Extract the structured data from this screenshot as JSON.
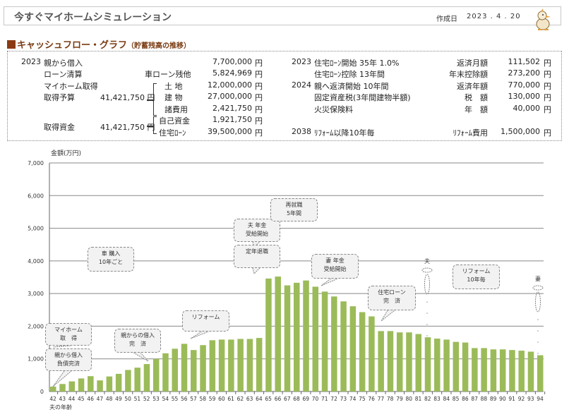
{
  "header": {
    "title": "今すぐマイホームシミュレーション",
    "date_label": "作成日",
    "date_value": "2023 . 4 . 20"
  },
  "section": {
    "title": "キャッシュフロー・グラフ",
    "subtitle": "（貯蓄残高の推移）"
  },
  "info_left": {
    "year": "2023",
    "rows": [
      {
        "label": "親から借入",
        "sub": "",
        "amount": "7,700,000",
        "unit": "円"
      },
      {
        "label": "ローン清算",
        "sub": "車ローン残他",
        "amount": "5,824,969",
        "unit": "円"
      },
      {
        "label": "マイホーム取得",
        "sub": "土 地",
        "amount": "12,000,000",
        "unit": "円"
      },
      {
        "label": "取得予算",
        "sub": "建 物",
        "amount": "27,000,000",
        "unit": "円"
      },
      {
        "label": "",
        "sub": "諸費用",
        "amount": "2,421,750",
        "unit": "円"
      },
      {
        "label": "",
        "sub": "自己資金",
        "amount": "1,921,750",
        "unit": "円"
      },
      {
        "label": "取得資金",
        "sub": "住宅ﾛｰﾝ",
        "amount": "39,500,000",
        "unit": "円"
      }
    ],
    "budget_amount": "41,421,750 円",
    "funds_amount": "41,421,750 円"
  },
  "info_right": {
    "rows": [
      {
        "year": "2023",
        "label": "住宅ﾛｰﾝ開始  35年 1.0%",
        "item": "返済月額",
        "amount": "111,502",
        "unit": "円"
      },
      {
        "year": "",
        "label": "住宅ﾛｰﾝ控除 13年間",
        "item": "年末控除額",
        "amount": "273,200",
        "unit": "円"
      },
      {
        "year": "2024",
        "label": "親へ返済開始 10年間",
        "item": "返済年額",
        "amount": "770,000",
        "unit": "円"
      },
      {
        "year": "",
        "label": "固定資産税(3年間建物半額)",
        "item": "税　額",
        "amount": "130,000",
        "unit": "円"
      },
      {
        "year": "",
        "label": "火災保険料",
        "item": "年　額",
        "amount": "40,000",
        "unit": "円"
      },
      {
        "year": "2038",
        "label": "ﾘﾌｫｰﾑ以降10年毎",
        "item": "ﾘﾌｫｰﾑ費用",
        "amount": "1,500,000",
        "unit": "円"
      }
    ]
  },
  "chart_data": {
    "type": "bar",
    "title": "",
    "ylabel": "金額(万円)",
    "xlabel": "夫の年齢",
    "ylim": [
      0,
      7000
    ],
    "yticks": [
      "0",
      "1,000",
      "2,000",
      "3,000",
      "4,000",
      "5,000",
      "6,000",
      "7,000"
    ],
    "categories": [
      "42",
      "43",
      "44",
      "45",
      "46",
      "47",
      "48",
      "49",
      "50",
      "51",
      "52",
      "53",
      "54",
      "55",
      "56",
      "57",
      "58",
      "59",
      "60",
      "61",
      "62",
      "63",
      "64",
      "65",
      "66",
      "67",
      "68",
      "69",
      "70",
      "71",
      "72",
      "73",
      "74",
      "75",
      "76",
      "77",
      "78",
      "79",
      "80",
      "81",
      "82",
      "83",
      "84",
      "85",
      "86",
      "87",
      "88",
      "89",
      "90",
      "91",
      "92",
      "93",
      "94"
    ],
    "values": [
      150,
      230,
      310,
      400,
      470,
      340,
      460,
      540,
      660,
      730,
      840,
      1000,
      1170,
      1310,
      1460,
      1270,
      1420,
      1570,
      1590,
      1590,
      1610,
      1610,
      1640,
      3460,
      3520,
      3250,
      3330,
      3400,
      3210,
      3060,
      2910,
      2760,
      2610,
      2430,
      2300,
      1850,
      1850,
      1810,
      1810,
      1760,
      1660,
      1620,
      1590,
      1520,
      1500,
      1330,
      1330,
      1290,
      1290,
      1270,
      1250,
      1220,
      1110
    ],
    "bar_color": "#9bbb59",
    "grid": true,
    "annotations": [
      {
        "lines": [
          "マイホーム",
          "取　得"
        ]
      },
      {
        "lines": [
          "親から借入",
          "負債完済"
        ]
      },
      {
        "lines": [
          "車  購入",
          "10年ごと"
        ]
      },
      {
        "lines": [
          "親からの借入",
          "完　済"
        ]
      },
      {
        "lines": [
          "リフォーム"
        ]
      },
      {
        "lines": [
          "夫  年金",
          "受給開始"
        ]
      },
      {
        "lines": [
          "定年退職"
        ]
      },
      {
        "lines": [
          "再就職",
          "5年間"
        ]
      },
      {
        "lines": [
          "妻  年金",
          "受給開始"
        ]
      },
      {
        "lines": [
          "住宅ローン",
          "完　済"
        ]
      },
      {
        "lines": [
          "リフォーム",
          "10年毎"
        ]
      }
    ],
    "markers": [
      {
        "label": "夫"
      },
      {
        "label": "妻"
      }
    ]
  }
}
